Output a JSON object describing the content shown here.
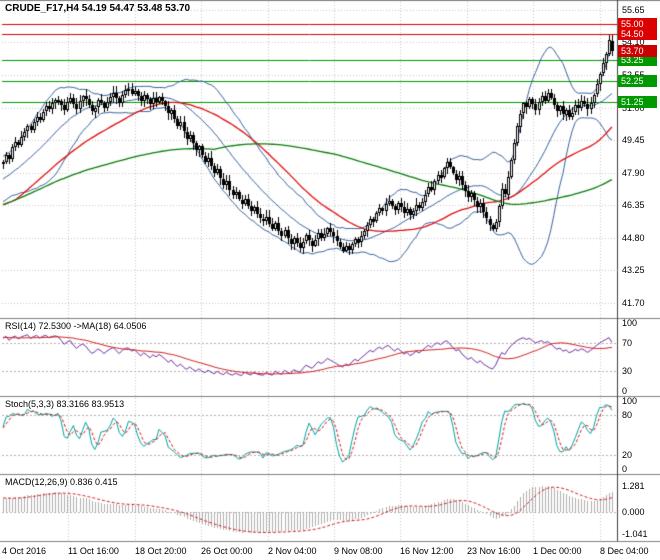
{
  "window": {
    "title_ohlc": "CRUDE_F17,H4 54.19 54.47 53.48 53.70"
  },
  "colors": {
    "background": "#ffffff",
    "grid": "#c8c8c8",
    "text": "#000000",
    "candle_up_fill": "#ffffff",
    "candle_down_fill": "#000000",
    "candle_border": "#000000",
    "bollinger": "#3a64a0",
    "ma_red": "#e01010",
    "ma_green": "#0a7d0a",
    "resistance": "#dd0000",
    "support": "#009900",
    "price_marker": "#cc0000",
    "rsi_line": "#7030a0",
    "rsi_ma": "#d02020",
    "stoch_k": "#00a5a5",
    "stoch_d": "#d02020",
    "macd_hist": "#b0b0b0",
    "macd_signal": "#d02020",
    "level_dashed": "#b4b4b4",
    "separator": "#808080",
    "axis_border": "#404040"
  },
  "chart_data": {
    "type": "candlestick",
    "symbol": "CRUDE_F17",
    "timeframe": "H4",
    "x_labels": [
      "4 Oct 2016",
      "11 Oct 16:00",
      "18 Oct 20:00",
      "26 Oct 00:00",
      "2 Nov 04:00",
      "9 Nov 08:00",
      "16 Nov 12:00",
      "23 Nov 16:00",
      "1 Dec 00:00",
      "8 Dec 04:00"
    ],
    "main": {
      "y_ticks": [
        55.65,
        54.1,
        52.55,
        51.0,
        49.45,
        47.9,
        46.35,
        44.8,
        43.25,
        41.7
      ],
      "levels": [
        {
          "price": 55.0,
          "color": "#dd0000",
          "role": "resistance"
        },
        {
          "price": 54.5,
          "color": "#dd0000",
          "role": "resistance"
        },
        {
          "price": 53.25,
          "color": "#009900",
          "role": "support"
        },
        {
          "price": 52.25,
          "color": "#009900",
          "role": "support"
        },
        {
          "price": 51.25,
          "color": "#009900",
          "role": "support"
        }
      ],
      "current_price": {
        "price": 53.7,
        "color": "#cc0000"
      },
      "bollinger": {
        "period": 20,
        "deviation": 2
      },
      "ma_red": {
        "period": 45
      },
      "ma_green": {
        "period": 110
      },
      "last_bar": {
        "open": 54.19,
        "high": 54.47,
        "low": 53.48,
        "close": 53.7
      },
      "pre_closes": [
        44.0,
        44.2,
        44.1,
        44.4,
        44.3,
        44.6,
        44.8,
        44.7,
        45.0,
        45.2,
        45.1,
        45.4,
        45.3,
        45.6,
        45.8,
        45.7,
        46.0,
        46.2,
        46.1,
        46.4,
        46.3,
        46.6,
        46.8,
        46.7,
        47.0,
        47.2,
        47.1,
        47.4,
        47.3,
        47.6,
        47.5,
        47.8,
        47.7,
        48.0,
        47.9,
        48.1,
        48.0,
        48.2,
        48.1,
        48.3
      ],
      "closes": [
        48.4,
        48.75,
        48.55,
        49.1,
        49.35,
        49.2,
        49.6,
        49.85,
        50.1,
        49.9,
        50.3,
        50.55,
        50.4,
        50.8,
        51.05,
        50.9,
        51.2,
        51.35,
        51.3,
        51.1,
        50.85,
        51.25,
        51.45,
        51.15,
        50.9,
        51.3,
        51.55,
        51.4,
        51.1,
        50.8,
        51.0,
        51.35,
        51.2,
        50.95,
        51.25,
        51.5,
        51.7,
        51.45,
        51.2,
        51.6,
        51.85,
        51.9,
        51.65,
        51.8,
        51.55,
        51.3,
        51.6,
        51.4,
        51.15,
        51.45,
        51.25,
        51.5,
        51.3,
        51.05,
        50.7,
        50.9,
        50.45,
        50.1,
        50.3,
        49.85,
        49.5,
        49.7,
        49.3,
        48.95,
        49.15,
        48.7,
        48.4,
        48.6,
        48.2,
        47.85,
        48.05,
        47.6,
        47.3,
        47.5,
        47.05,
        46.8,
        46.95,
        46.6,
        46.4,
        46.65,
        46.3,
        46.05,
        46.25,
        45.9,
        45.7,
        45.6,
        45.8,
        45.45,
        45.2,
        45.5,
        45.1,
        44.85,
        45.15,
        44.75,
        44.5,
        44.8,
        44.55,
        44.3,
        44.6,
        44.9,
        44.65,
        44.4,
        44.7,
        45.0,
        44.75,
        44.95,
        45.25,
        45.05,
        44.85,
        44.6,
        44.35,
        44.15,
        44.4,
        44.2,
        44.5,
        44.75,
        44.55,
        44.85,
        45.1,
        45.4,
        45.7,
        45.55,
        45.95,
        46.2,
        46.05,
        46.4,
        46.55,
        46.3,
        46.1,
        46.45,
        46.25,
        45.95,
        46.15,
        45.85,
        46.05,
        46.35,
        46.2,
        46.5,
        46.85,
        47.2,
        47.05,
        47.5,
        47.8,
        47.65,
        48.1,
        48.4,
        48.15,
        47.85,
        47.55,
        47.75,
        47.3,
        47.0,
        46.7,
        46.9,
        46.55,
        46.25,
        46.45,
        46.0,
        45.7,
        45.4,
        45.2,
        45.55,
        46.3,
        47.1,
        46.85,
        47.7,
        48.5,
        49.3,
        50.1,
        50.7,
        51.2,
        51.0,
        51.4,
        51.15,
        50.85,
        51.25,
        51.55,
        51.3,
        51.7,
        51.45,
        51.1,
        50.8,
        51.05,
        50.65,
        50.9,
        50.55,
        50.75,
        51.1,
        50.95,
        51.3,
        51.15,
        50.9,
        51.2,
        51.6,
        52.1,
        52.6,
        53.1,
        53.55,
        54.2,
        53.7
      ]
    },
    "rsi": {
      "label": "RSI(14) 72.5300  ->MA(18) 64.0506",
      "period": 14,
      "ma_period": 18,
      "value": 72.53,
      "ma_value": 64.0506,
      "levels": [
        70,
        30
      ],
      "y_ticks": [
        100,
        70,
        30,
        0
      ]
    },
    "stoch": {
      "label": "Stoch(5,3,3) 83.3166 83.9513",
      "k": 5,
      "d": 3,
      "slow": 3,
      "value": 83.3166,
      "signal_value": 83.9513,
      "levels": [
        80,
        20
      ],
      "y_ticks": [
        100,
        80,
        20,
        0
      ]
    },
    "macd": {
      "label": "MACD(12,26,9) 0.836 0.415",
      "fast": 12,
      "slow": 26,
      "signal": 9,
      "value": 0.836,
      "signal_value": 0.415,
      "y_tick_labels": [
        "1.281",
        "0.000",
        "-1.041"
      ]
    }
  }
}
